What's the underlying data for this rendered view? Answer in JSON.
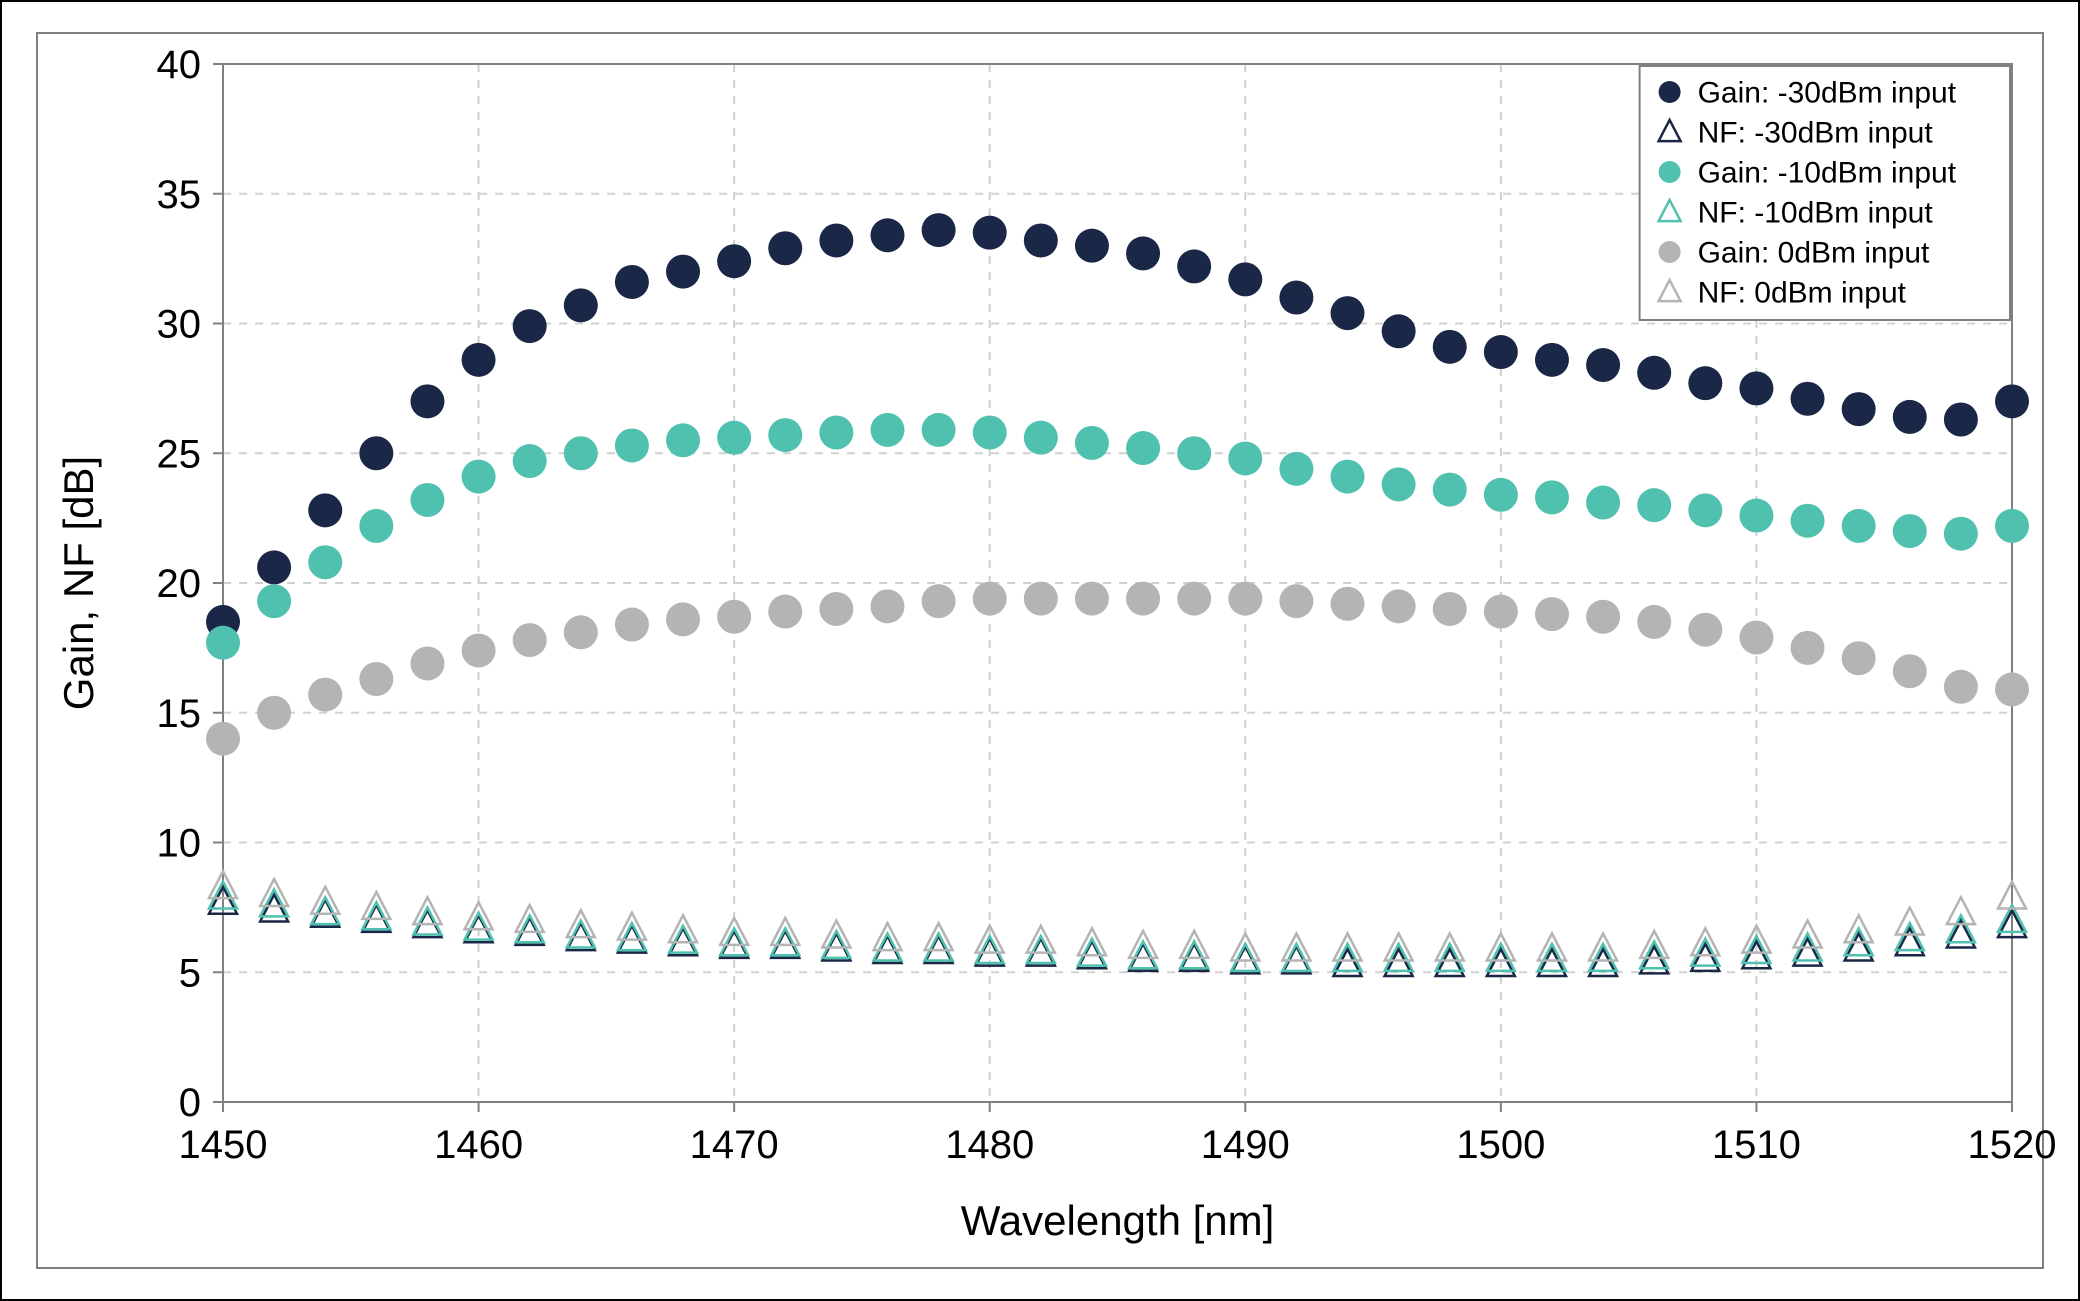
{
  "chart": {
    "type": "scatter",
    "background_color": "#ffffff",
    "outer_border_color": "#000000",
    "inner_border_color": "#808080",
    "plot_border_color": "#808080",
    "grid_color": "#d0d0d0",
    "grid_dash": "8,8",
    "xlabel": "Wavelength [nm]",
    "ylabel": "Gain, NF [dB]",
    "axis_label_fontsize": 42,
    "tick_label_fontsize": 40,
    "legend_fontsize": 30,
    "xlim": [
      1450,
      1520
    ],
    "ylim": [
      0,
      40
    ],
    "xtick_step": 10,
    "ytick_step": 5,
    "xticks": [
      1450,
      1460,
      1470,
      1480,
      1490,
      1500,
      1510,
      1520
    ],
    "yticks": [
      0,
      5,
      10,
      15,
      20,
      25,
      30,
      35,
      40
    ],
    "x_values": [
      1450,
      1452,
      1454,
      1456,
      1458,
      1460,
      1462,
      1464,
      1466,
      1468,
      1470,
      1472,
      1474,
      1476,
      1478,
      1480,
      1482,
      1484,
      1486,
      1488,
      1490,
      1492,
      1494,
      1496,
      1498,
      1500,
      1502,
      1504,
      1506,
      1508,
      1510,
      1512,
      1514,
      1516,
      1518,
      1520
    ],
    "series": [
      {
        "name": "Gain: -30dBm input",
        "marker": "circle-filled",
        "color": "#1a2746",
        "size": 17,
        "y": [
          18.5,
          20.6,
          22.8,
          25.0,
          27.0,
          28.6,
          29.9,
          30.7,
          31.6,
          32.0,
          32.4,
          32.9,
          33.2,
          33.4,
          33.6,
          33.5,
          33.2,
          33.0,
          32.7,
          32.2,
          31.7,
          31.0,
          30.4,
          29.7,
          29.1,
          28.9,
          28.6,
          28.4,
          28.1,
          27.7,
          27.5,
          27.1,
          26.7,
          26.4,
          26.3,
          27.0
        ]
      },
      {
        "name": "NF: -30dBm input",
        "marker": "triangle-open",
        "color": "#1a2746",
        "size": 14,
        "y": [
          7.7,
          7.4,
          7.2,
          7.0,
          6.8,
          6.6,
          6.5,
          6.3,
          6.2,
          6.1,
          6.0,
          6.0,
          5.9,
          5.8,
          5.8,
          5.7,
          5.7,
          5.6,
          5.5,
          5.5,
          5.4,
          5.4,
          5.3,
          5.3,
          5.3,
          5.3,
          5.3,
          5.3,
          5.4,
          5.5,
          5.6,
          5.7,
          5.9,
          6.1,
          6.4,
          6.8
        ]
      },
      {
        "name": "Gain: -10dBm input",
        "marker": "circle-filled",
        "color": "#4fc1ae",
        "size": 17,
        "y": [
          17.7,
          19.3,
          20.8,
          22.2,
          23.2,
          24.1,
          24.7,
          25.0,
          25.3,
          25.5,
          25.6,
          25.7,
          25.8,
          25.9,
          25.9,
          25.8,
          25.6,
          25.4,
          25.2,
          25.0,
          24.8,
          24.4,
          24.1,
          23.8,
          23.6,
          23.4,
          23.3,
          23.1,
          23.0,
          22.8,
          22.6,
          22.4,
          22.2,
          22.0,
          21.9,
          22.2
        ]
      },
      {
        "name": "NF: -10dBm input",
        "marker": "triangle-open",
        "color": "#4fc1ae",
        "size": 14,
        "y": [
          7.9,
          7.6,
          7.3,
          7.1,
          6.9,
          6.7,
          6.6,
          6.4,
          6.3,
          6.2,
          6.1,
          6.1,
          6.0,
          5.9,
          5.9,
          5.8,
          5.8,
          5.7,
          5.6,
          5.6,
          5.5,
          5.5,
          5.5,
          5.5,
          5.5,
          5.5,
          5.5,
          5.5,
          5.6,
          5.7,
          5.8,
          5.9,
          6.1,
          6.3,
          6.6,
          7.0
        ]
      },
      {
        "name": "Gain: 0dBm input",
        "marker": "circle-filled",
        "color": "#b4b4b4",
        "size": 17,
        "y": [
          14.0,
          15.0,
          15.7,
          16.3,
          16.9,
          17.4,
          17.8,
          18.1,
          18.4,
          18.6,
          18.7,
          18.9,
          19.0,
          19.1,
          19.3,
          19.4,
          19.4,
          19.4,
          19.4,
          19.4,
          19.4,
          19.3,
          19.2,
          19.1,
          19.0,
          18.9,
          18.8,
          18.7,
          18.5,
          18.2,
          17.9,
          17.5,
          17.1,
          16.6,
          16.0,
          15.9
        ]
      },
      {
        "name": "NF: 0dBm input",
        "marker": "triangle-open",
        "color": "#b4b4b4",
        "size": 14,
        "y": [
          8.3,
          8.0,
          7.7,
          7.5,
          7.3,
          7.1,
          7.0,
          6.8,
          6.7,
          6.6,
          6.5,
          6.5,
          6.4,
          6.3,
          6.3,
          6.2,
          6.2,
          6.1,
          6.0,
          6.0,
          5.9,
          5.9,
          5.9,
          5.9,
          5.9,
          5.9,
          5.9,
          5.9,
          6.0,
          6.1,
          6.2,
          6.4,
          6.6,
          6.9,
          7.3,
          7.9
        ]
      }
    ],
    "legend": {
      "position": "top-right",
      "border_color": "#808080",
      "background": "#ffffff"
    }
  }
}
